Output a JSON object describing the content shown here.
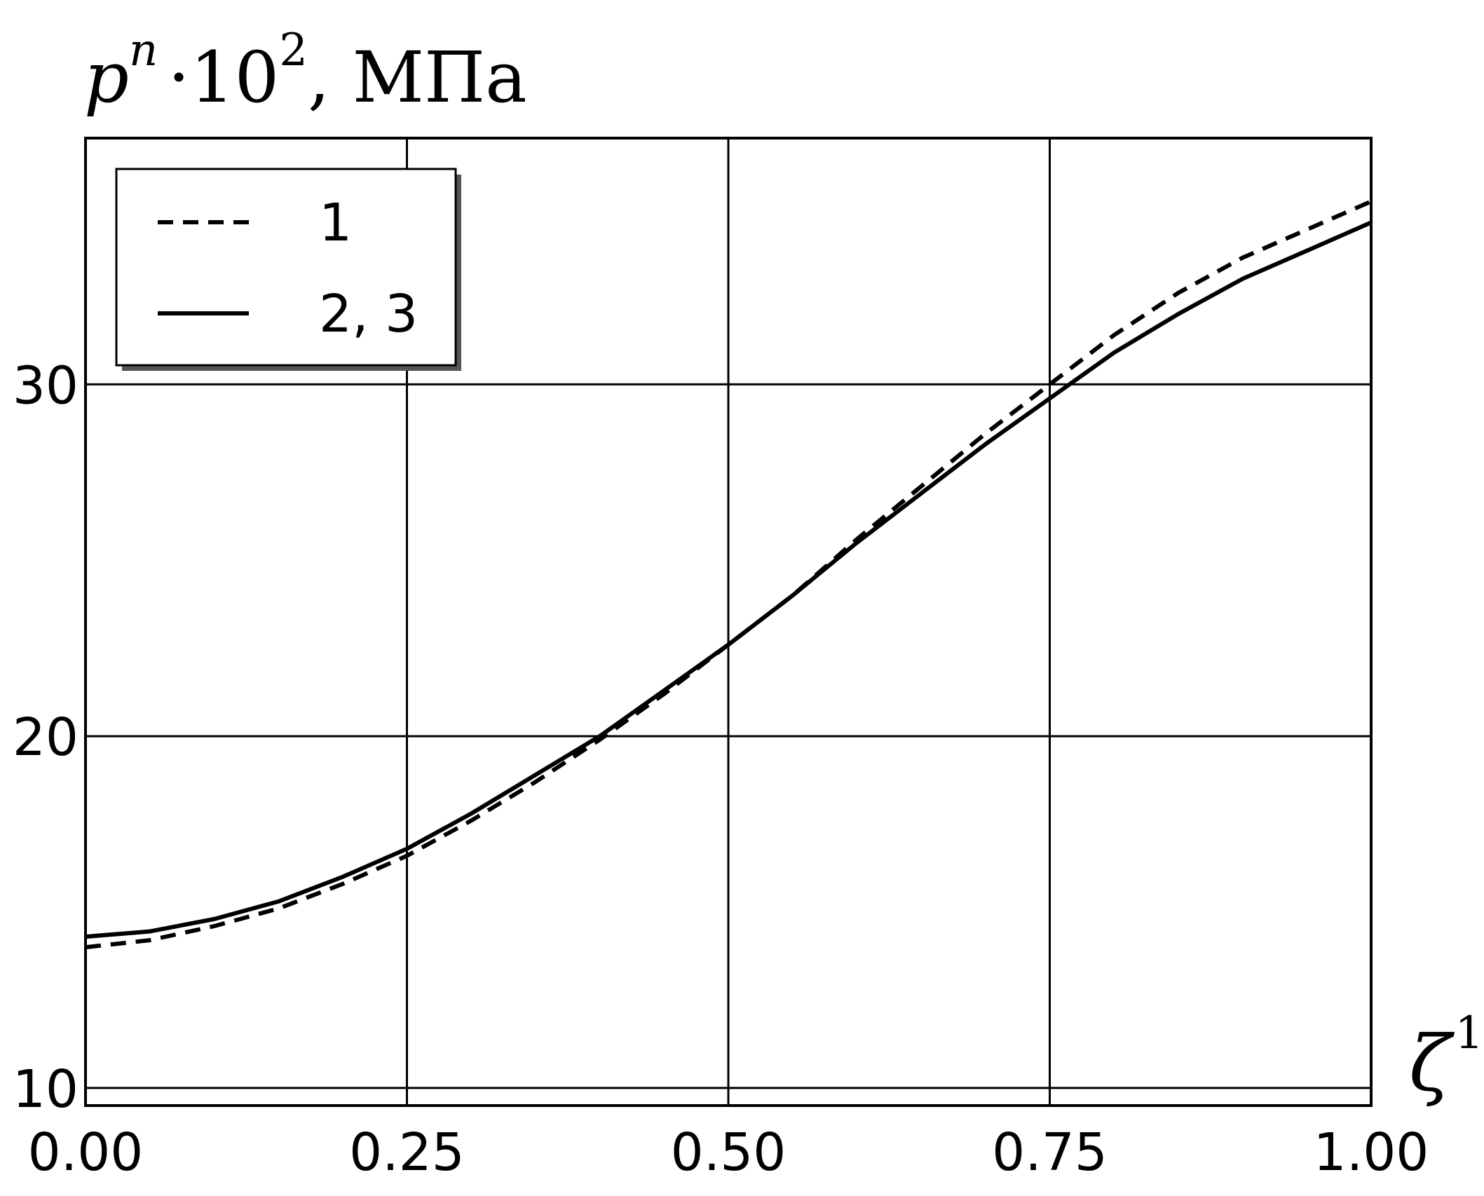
{
  "chart_data": {
    "type": "line",
    "title": "",
    "ylabel": {
      "base": "p",
      "sup": "n",
      "middle": "·10",
      "sup2": "2",
      "unit": ", МПа"
    },
    "xlabel": {
      "base": "ζ",
      "sup": "1"
    },
    "xlim": [
      0.0,
      1.0
    ],
    "ylim": [
      9.5,
      37.0
    ],
    "x_ticks": [
      0.0,
      0.25,
      0.5,
      0.75,
      1.0
    ],
    "x_tick_labels": [
      "0.00",
      "0.25",
      "0.50",
      "0.75",
      "1.00"
    ],
    "y_ticks": [
      10,
      20,
      30
    ],
    "y_tick_labels": [
      "10",
      "20",
      "30"
    ],
    "grid": true,
    "legend_position": "top-left",
    "series": [
      {
        "name": "1",
        "style": "dashed",
        "color": "#000000",
        "x": [
          0.0,
          0.05,
          0.1,
          0.15,
          0.2,
          0.25,
          0.3,
          0.35,
          0.4,
          0.45,
          0.5,
          0.55,
          0.6,
          0.65,
          0.7,
          0.75,
          0.8,
          0.85,
          0.9,
          0.95,
          1.0
        ],
        "y": [
          14.0,
          14.2,
          14.6,
          15.1,
          15.8,
          16.6,
          17.6,
          18.7,
          19.9,
          21.2,
          22.6,
          24.0,
          25.6,
          27.1,
          28.6,
          30.0,
          31.4,
          32.6,
          33.6,
          34.4,
          35.2
        ]
      },
      {
        "name": "2, 3",
        "style": "solid",
        "color": "#000000",
        "x": [
          0.0,
          0.05,
          0.1,
          0.15,
          0.2,
          0.25,
          0.3,
          0.35,
          0.4,
          0.45,
          0.5,
          0.55,
          0.6,
          0.65,
          0.7,
          0.75,
          0.8,
          0.85,
          0.9,
          0.95,
          1.0
        ],
        "y": [
          14.3,
          14.45,
          14.8,
          15.3,
          16.0,
          16.8,
          17.8,
          18.9,
          20.0,
          21.3,
          22.6,
          24.0,
          25.5,
          26.9,
          28.3,
          29.6,
          30.9,
          32.0,
          33.0,
          33.8,
          34.6
        ]
      }
    ]
  }
}
